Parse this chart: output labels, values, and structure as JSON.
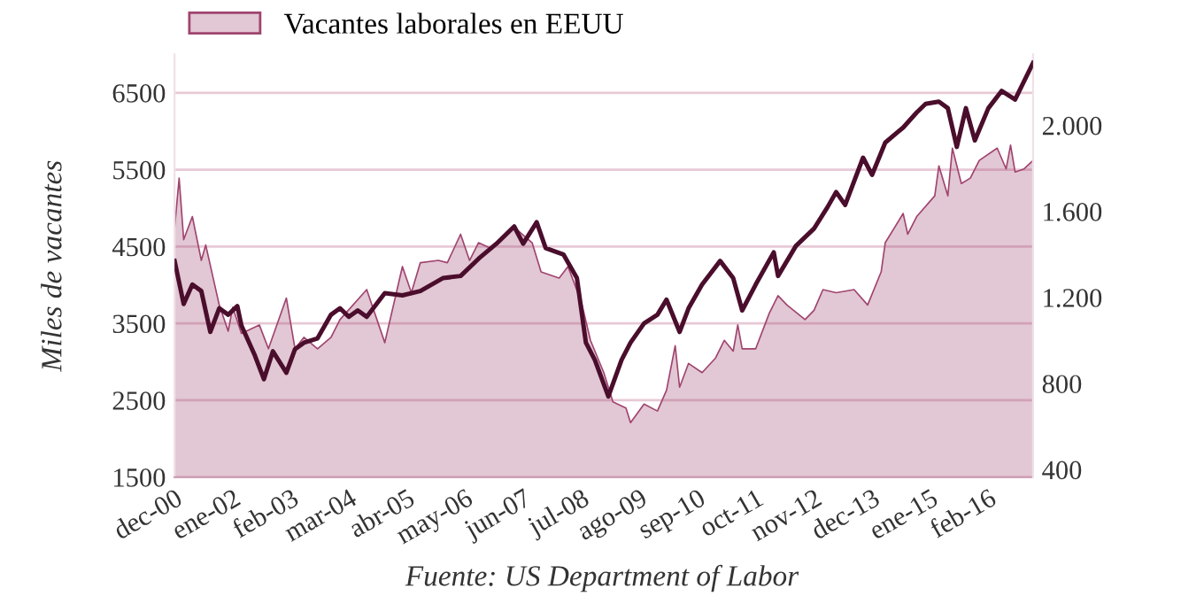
{
  "chart_data": {
    "type": "area",
    "ylabel": "Miles de vacantes",
    "annotations": [
      "Fuente: US Department of Labor"
    ],
    "xlim": [
      "2000-12",
      "2016-12"
    ],
    "xticks": [
      {
        "value": "2000-12",
        "label": "dec-00"
      },
      {
        "value": "2002-01",
        "label": "ene-02"
      },
      {
        "value": "2003-02",
        "label": "feb-03"
      },
      {
        "value": "2004-03",
        "label": "mar-04"
      },
      {
        "value": "2005-04",
        "label": "abr-05"
      },
      {
        "value": "2006-05",
        "label": "may-06"
      },
      {
        "value": "2007-06",
        "label": "jun-07"
      },
      {
        "value": "2008-07",
        "label": "jul-08"
      },
      {
        "value": "2009-08",
        "label": "ago-09"
      },
      {
        "value": "2010-09",
        "label": "sep-10"
      },
      {
        "value": "2011-10",
        "label": "oct-11"
      },
      {
        "value": "2012-11",
        "label": "nov-12"
      },
      {
        "value": "2013-12",
        "label": "dec-13"
      },
      {
        "value": "2015-01",
        "label": "ene-15"
      },
      {
        "value": "2016-02",
        "label": "feb-16"
      }
    ],
    "ylim": [
      1500,
      7000
    ],
    "yticks": [
      1500,
      2500,
      3500,
      4500,
      5500,
      6500
    ],
    "y2lim": [
      365,
      2330
    ],
    "y2ticks": [
      400,
      800,
      {
        "value": 1200,
        "label": "1.200"
      },
      {
        "value": 1600,
        "label": "1.600"
      },
      {
        "value": 2000,
        "label": "2.000"
      }
    ],
    "grid": "y",
    "legend": "top left",
    "series": [
      {
        "name": "Vacantes laborales en EEUU",
        "color": "#a0446f",
        "x": [
          "2000-12",
          "2001-01",
          "2001-02",
          "2001-04",
          "2001-06",
          "2001-07",
          "2001-10",
          "2001-12",
          "2002-01",
          "2002-03",
          "2002-07",
          "2002-09",
          "2003-01",
          "2003-03",
          "2003-05",
          "2003-08",
          "2003-11",
          "2004-01",
          "2004-07",
          "2004-11",
          "2005-03",
          "2005-05",
          "2005-07",
          "2005-11",
          "2006-01",
          "2006-04",
          "2006-06",
          "2006-08",
          "2006-11",
          "2007-01",
          "2007-04",
          "2007-08",
          "2007-10",
          "2008-02",
          "2008-04",
          "2008-07",
          "2008-09",
          "2008-12",
          "2009-02",
          "2009-05",
          "2009-06",
          "2009-09",
          "2009-12",
          "2010-02",
          "2010-04",
          "2010-05",
          "2010-07",
          "2010-10",
          "2011-01",
          "2011-03",
          "2011-05",
          "2011-06",
          "2011-07",
          "2011-10",
          "2012-01",
          "2012-03",
          "2012-05",
          "2012-09",
          "2012-11",
          "2013-01",
          "2013-04",
          "2013-08",
          "2013-11",
          "2014-02",
          "2014-03",
          "2014-07",
          "2014-08",
          "2014-10",
          "2015-02",
          "2015-03",
          "2015-05",
          "2015-06",
          "2015-08",
          "2015-10",
          "2015-12",
          "2016-04",
          "2016-06",
          "2016-07",
          "2016-08",
          "2016-10",
          "2016-12"
        ],
        "values": [
          4740,
          5390,
          4590,
          4890,
          4320,
          4520,
          3740,
          3400,
          3710,
          3370,
          3480,
          3170,
          3830,
          3170,
          3320,
          3170,
          3320,
          3550,
          3940,
          3250,
          4240,
          3900,
          4290,
          4320,
          4290,
          4660,
          4320,
          4550,
          4470,
          4590,
          4750,
          4550,
          4170,
          4090,
          4240,
          3780,
          3280,
          2860,
          2480,
          2400,
          2210,
          2450,
          2360,
          2630,
          3210,
          2670,
          2980,
          2860,
          3050,
          3280,
          3140,
          3480,
          3170,
          3170,
          3630,
          3860,
          3740,
          3550,
          3670,
          3940,
          3900,
          3940,
          3740,
          4170,
          4550,
          4930,
          4660,
          4890,
          5160,
          5550,
          5160,
          5780,
          5320,
          5390,
          5620,
          5780,
          5510,
          5820,
          5470,
          5510,
          5620
        ]
      },
      {
        "type": "line",
        "axis": "y2",
        "color": "#4a0e2c",
        "x": [
          "2000-12",
          "2001-02",
          "2001-04",
          "2001-06",
          "2001-08",
          "2001-10",
          "2001-12",
          "2002-02",
          "2002-03",
          "2002-06",
          "2002-08",
          "2002-10",
          "2003-01",
          "2003-03",
          "2003-05",
          "2003-08",
          "2003-11",
          "2004-01",
          "2004-03",
          "2004-05",
          "2004-07",
          "2004-11",
          "2005-03",
          "2005-07",
          "2005-12",
          "2006-04",
          "2006-08",
          "2006-12",
          "2007-04",
          "2007-06",
          "2007-09",
          "2007-11",
          "2008-03",
          "2008-06",
          "2008-08",
          "2008-10",
          "2009-01",
          "2009-04",
          "2009-06",
          "2009-09",
          "2009-12",
          "2010-02",
          "2010-05",
          "2010-07",
          "2010-10",
          "2011-02",
          "2011-05",
          "2011-07",
          "2011-10",
          "2012-02",
          "2012-03",
          "2012-07",
          "2012-11",
          "2013-02",
          "2013-04",
          "2013-06",
          "2013-10",
          "2013-12",
          "2014-03",
          "2014-07",
          "2014-10",
          "2014-12",
          "2015-03",
          "2015-05",
          "2015-07",
          "2015-09",
          "2015-11",
          "2016-02",
          "2016-05",
          "2016-08",
          "2016-12"
        ],
        "values": [
          1370,
          1170,
          1260,
          1230,
          1040,
          1150,
          1120,
          1160,
          1070,
          930,
          820,
          950,
          850,
          960,
          990,
          1010,
          1120,
          1150,
          1110,
          1140,
          1110,
          1220,
          1210,
          1230,
          1290,
          1300,
          1380,
          1450,
          1530,
          1450,
          1550,
          1430,
          1400,
          1290,
          990,
          910,
          740,
          910,
          990,
          1080,
          1120,
          1190,
          1040,
          1150,
          1260,
          1370,
          1290,
          1140,
          1260,
          1410,
          1300,
          1440,
          1520,
          1620,
          1690,
          1630,
          1850,
          1770,
          1920,
          1990,
          2060,
          2100,
          2110,
          2080,
          1900,
          2080,
          1930,
          2080,
          2160,
          2120,
          2290
        ]
      }
    ]
  }
}
